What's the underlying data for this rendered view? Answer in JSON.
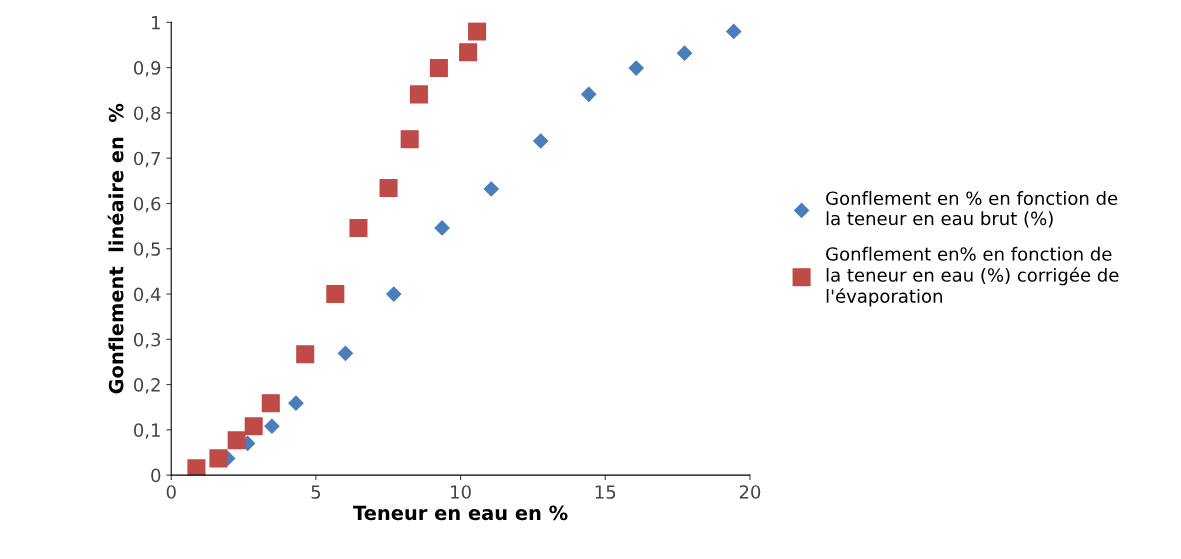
{
  "chart_data": {
    "type": "scatter",
    "xlabel": "Teneur en eau en %",
    "ylabel": "Gonflement  linéaire en  %",
    "xlim": [
      0,
      20
    ],
    "ylim": [
      0,
      1
    ],
    "xticks": [
      0,
      5,
      10,
      15,
      20
    ],
    "yticks": [
      0,
      {
        "value": 0.1,
        "label": "0,1"
      },
      {
        "value": 0.2,
        "label": "0,2"
      },
      {
        "value": 0.3,
        "label": "0,3"
      },
      {
        "value": 0.4,
        "label": "0,4"
      },
      {
        "value": 0.5,
        "label": "0,5"
      },
      {
        "value": 0.6,
        "label": "0,6"
      },
      {
        "value": 0.7,
        "label": "0,7"
      },
      {
        "value": 0.8,
        "label": "0,8"
      },
      {
        "value": 0.9,
        "label": "0,9"
      },
      1
    ],
    "grid": false,
    "legend": "right",
    "series": [
      {
        "name": "Gonflement en % en fonction de\nla teneur en eau brut (%)",
        "color": "#4a7ebb",
        "marker": "diamond",
        "x": [
          1.95,
          2.64,
          3.48,
          4.31,
          6.02,
          7.69,
          9.36,
          11.06,
          12.77,
          14.43,
          16.07,
          17.74,
          19.44
        ],
        "values": [
          0.037,
          0.07,
          0.108,
          0.159,
          0.269,
          0.4,
          0.546,
          0.632,
          0.738,
          0.841,
          0.899,
          0.932,
          0.98
        ]
      },
      {
        "name": "Gonflement en% en fonction de\nla teneur en eau (%) corrigée de\nl'évaporation",
        "color": "#be4b48",
        "marker": "square",
        "x": [
          0.87,
          1.63,
          2.26,
          2.85,
          3.44,
          4.63,
          5.67,
          6.47,
          7.51,
          8.24,
          8.56,
          9.25,
          10.26,
          10.57
        ],
        "values": [
          0.015,
          0.037,
          0.077,
          0.108,
          0.159,
          0.267,
          0.4,
          0.546,
          0.634,
          0.742,
          0.841,
          0.899,
          0.934,
          0.98
        ]
      }
    ]
  }
}
